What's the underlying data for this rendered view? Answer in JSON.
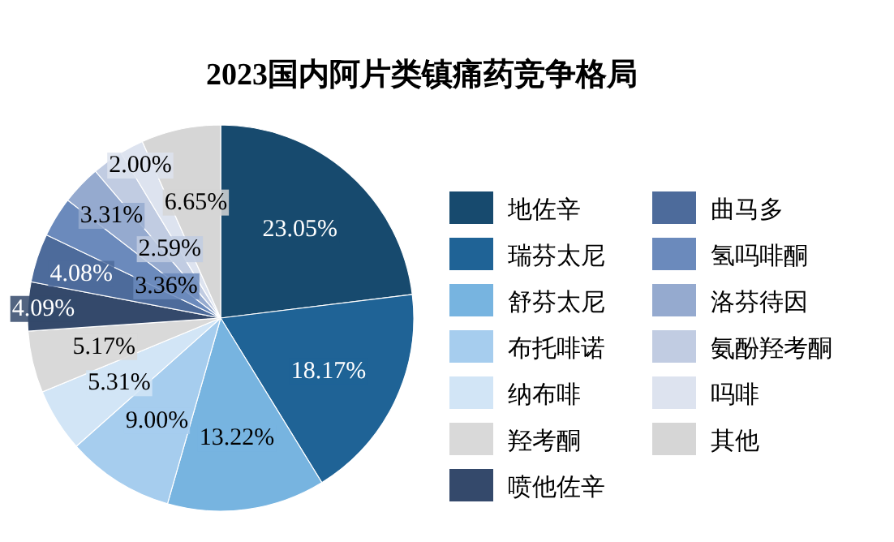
{
  "chart_data": {
    "type": "pie",
    "title": "2023国内阿片类镇痛药竞争格局",
    "categories": [
      "地佐辛",
      "瑞芬太尼",
      "舒芬太尼",
      "布托啡诺",
      "纳布啡",
      "羟考酮",
      "喷他佐辛",
      "曲马多",
      "氢吗啡酮",
      "洛芬待因",
      "氨酚羟考酮",
      "吗啡",
      "其他"
    ],
    "values": [
      23.05,
      18.17,
      13.22,
      9.0,
      5.31,
      5.17,
      4.09,
      4.08,
      3.36,
      3.31,
      2.59,
      2.0,
      6.65
    ],
    "value_labels": [
      "23.05%",
      "18.17%",
      "13.22%",
      "9.00%",
      "5.31%",
      "5.17%",
      "4.09%",
      "4.08%",
      "3.36%",
      "3.31%",
      "2.59%",
      "2.00%",
      "6.65%"
    ],
    "colors": [
      "#174a6e",
      "#1f6396",
      "#77b4e0",
      "#a6cdee",
      "#d2e5f6",
      "#d9d9d9",
      "#34496b",
      "#4d6b9b",
      "#6b8abc",
      "#95aacf",
      "#c1cce2",
      "#dde3ef",
      "#d6d6d6"
    ],
    "legend": "right"
  }
}
